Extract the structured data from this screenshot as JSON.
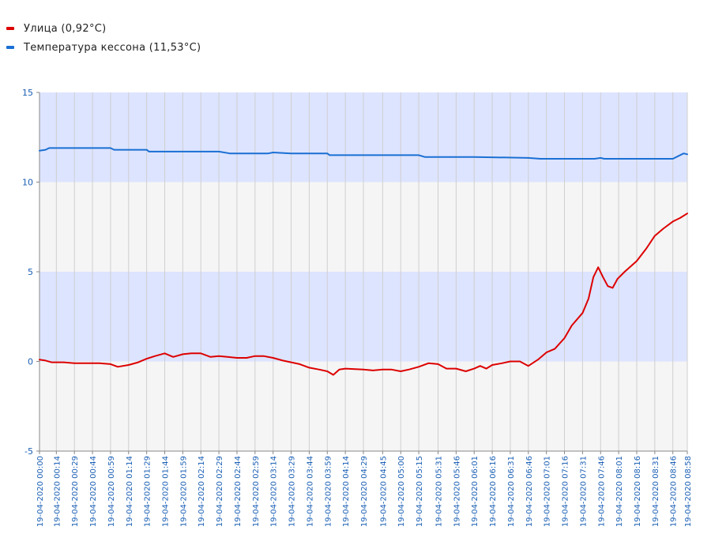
{
  "legend": [
    {
      "label": "Улица (0,92°C)",
      "color": "#dd0000"
    },
    {
      "label": "Температура кессона (11,53°C)",
      "color": "#1a6fd4"
    }
  ],
  "chart_data": {
    "type": "line",
    "title": "",
    "xlabel": "",
    "ylabel": "",
    "ylim": [
      -5,
      15
    ],
    "yticks": [
      -5,
      0,
      5,
      10,
      15
    ],
    "grid": true,
    "legend_position": "top-left",
    "band_colors": {
      "blue": "#dde4ff",
      "grey": "#f5f5f5"
    },
    "xticks": [
      "19-04-2020 00:00",
      "19-04-2020 00:14",
      "19-04-2020 00:29",
      "19-04-2020 00:44",
      "19-04-2020 00:59",
      "19-04-2020 01:14",
      "19-04-2020 01:29",
      "19-04-2020 01:44",
      "19-04-2020 01:59",
      "19-04-2020 02:14",
      "19-04-2020 02:29",
      "19-04-2020 02:44",
      "19-04-2020 02:59",
      "19-04-2020 03:14",
      "19-04-2020 03:29",
      "19-04-2020 03:44",
      "19-04-2020 03:59",
      "19-04-2020 04:14",
      "19-04-2020 04:29",
      "19-04-2020 04:45",
      "19-04-2020 05:00",
      "19-04-2020 05:15",
      "19-04-2020 05:31",
      "19-04-2020 05:46",
      "19-04-2020 06:01",
      "19-04-2020 06:16",
      "19-04-2020 06:31",
      "19-04-2020 06:46",
      "19-04-2020 07:01",
      "19-04-2020 07:16",
      "19-04-2020 07:31",
      "19-04-2020 07:46",
      "19-04-2020 08:01",
      "19-04-2020 08:16",
      "19-04-2020 08:31",
      "19-04-2020 08:46",
      "19-04-2020 08:58"
    ],
    "series": [
      {
        "name": "Улица (0,92°C)",
        "color": "#dd0000",
        "points": [
          [
            "19-04-2020 00:00",
            0.1
          ],
          [
            "19-04-2020 00:05",
            0.05
          ],
          [
            "19-04-2020 00:10",
            -0.05
          ],
          [
            "19-04-2020 00:20",
            -0.05
          ],
          [
            "19-04-2020 00:29",
            -0.1
          ],
          [
            "19-04-2020 00:40",
            -0.1
          ],
          [
            "19-04-2020 00:50",
            -0.1
          ],
          [
            "19-04-2020 00:59",
            -0.15
          ],
          [
            "19-04-2020 01:05",
            -0.3
          ],
          [
            "19-04-2020 01:14",
            -0.2
          ],
          [
            "19-04-2020 01:22",
            -0.05
          ],
          [
            "19-04-2020 01:29",
            0.15
          ],
          [
            "19-04-2020 01:36",
            0.3
          ],
          [
            "19-04-2020 01:44",
            0.45
          ],
          [
            "19-04-2020 01:51",
            0.25
          ],
          [
            "19-04-2020 01:59",
            0.4
          ],
          [
            "19-04-2020 02:06",
            0.45
          ],
          [
            "19-04-2020 02:14",
            0.45
          ],
          [
            "19-04-2020 02:22",
            0.25
          ],
          [
            "19-04-2020 02:29",
            0.3
          ],
          [
            "19-04-2020 02:36",
            0.25
          ],
          [
            "19-04-2020 02:44",
            0.2
          ],
          [
            "19-04-2020 02:52",
            0.2
          ],
          [
            "19-04-2020 02:59",
            0.3
          ],
          [
            "19-04-2020 03:06",
            0.3
          ],
          [
            "19-04-2020 03:14",
            0.2
          ],
          [
            "19-04-2020 03:22",
            0.05
          ],
          [
            "19-04-2020 03:29",
            -0.05
          ],
          [
            "19-04-2020 03:36",
            -0.15
          ],
          [
            "19-04-2020 03:44",
            -0.35
          ],
          [
            "19-04-2020 03:52",
            -0.45
          ],
          [
            "19-04-2020 03:59",
            -0.55
          ],
          [
            "19-04-2020 04:04",
            -0.75
          ],
          [
            "19-04-2020 04:09",
            -0.45
          ],
          [
            "19-04-2020 04:14",
            -0.4
          ],
          [
            "19-04-2020 04:29",
            -0.45
          ],
          [
            "19-04-2020 04:37",
            -0.5
          ],
          [
            "19-04-2020 04:45",
            -0.45
          ],
          [
            "19-04-2020 04:52",
            -0.45
          ],
          [
            "19-04-2020 05:00",
            -0.55
          ],
          [
            "19-04-2020 05:07",
            -0.45
          ],
          [
            "19-04-2020 05:15",
            -0.3
          ],
          [
            "19-04-2020 05:23",
            -0.1
          ],
          [
            "19-04-2020 05:31",
            -0.15
          ],
          [
            "19-04-2020 05:38",
            -0.4
          ],
          [
            "19-04-2020 05:46",
            -0.4
          ],
          [
            "19-04-2020 05:54",
            -0.55
          ],
          [
            "19-04-2020 06:01",
            -0.4
          ],
          [
            "19-04-2020 06:06",
            -0.25
          ],
          [
            "19-04-2020 06:11",
            -0.4
          ],
          [
            "19-04-2020 06:16",
            -0.2
          ],
          [
            "19-04-2020 06:24",
            -0.1
          ],
          [
            "19-04-2020 06:31",
            0.0
          ],
          [
            "19-04-2020 06:39",
            0.0
          ],
          [
            "19-04-2020 06:46",
            -0.25
          ],
          [
            "19-04-2020 06:54",
            0.1
          ],
          [
            "19-04-2020 07:01",
            0.5
          ],
          [
            "19-04-2020 07:08",
            0.7
          ],
          [
            "19-04-2020 07:16",
            1.3
          ],
          [
            "19-04-2020 07:22",
            2.0
          ],
          [
            "19-04-2020 07:31",
            2.7
          ],
          [
            "19-04-2020 07:36",
            3.5
          ],
          [
            "19-04-2020 07:40",
            4.7
          ],
          [
            "19-04-2020 07:44",
            5.25
          ],
          [
            "19-04-2020 07:48",
            4.7
          ],
          [
            "19-04-2020 07:52",
            4.2
          ],
          [
            "19-04-2020 07:56",
            4.1
          ],
          [
            "19-04-2020 08:00",
            4.6
          ],
          [
            "19-04-2020 08:06",
            5.0
          ],
          [
            "19-04-2020 08:16",
            5.6
          ],
          [
            "19-04-2020 08:24",
            6.3
          ],
          [
            "19-04-2020 08:31",
            7.0
          ],
          [
            "19-04-2020 08:38",
            7.4
          ],
          [
            "19-04-2020 08:46",
            7.8
          ],
          [
            "19-04-2020 08:52",
            8.0
          ],
          [
            "19-04-2020 08:58",
            8.25
          ]
        ]
      },
      {
        "name": "Температура кессона (11,53°C)",
        "color": "#1a6fd4",
        "points": [
          [
            "19-04-2020 00:00",
            11.75
          ],
          [
            "19-04-2020 00:05",
            11.8
          ],
          [
            "19-04-2020 00:08",
            11.9
          ],
          [
            "19-04-2020 00:59",
            11.9
          ],
          [
            "19-04-2020 01:02",
            11.8
          ],
          [
            "19-04-2020 01:29",
            11.8
          ],
          [
            "19-04-2020 01:31",
            11.7
          ],
          [
            "19-04-2020 02:29",
            11.7
          ],
          [
            "19-04-2020 02:38",
            11.6
          ],
          [
            "19-04-2020 03:10",
            11.6
          ],
          [
            "19-04-2020 03:14",
            11.65
          ],
          [
            "19-04-2020 03:29",
            11.6
          ],
          [
            "19-04-2020 03:59",
            11.6
          ],
          [
            "19-04-2020 04:01",
            11.5
          ],
          [
            "19-04-2020 05:15",
            11.5
          ],
          [
            "19-04-2020 05:20",
            11.4
          ],
          [
            "19-04-2020 06:01",
            11.4
          ],
          [
            "19-04-2020 06:46",
            11.35
          ],
          [
            "19-04-2020 06:56",
            11.3
          ],
          [
            "19-04-2020 07:41",
            11.3
          ],
          [
            "19-04-2020 07:46",
            11.35
          ],
          [
            "19-04-2020 07:49",
            11.3
          ],
          [
            "19-04-2020 08:46",
            11.3
          ],
          [
            "19-04-2020 08:55",
            11.6
          ],
          [
            "19-04-2020 08:58",
            11.55
          ]
        ]
      }
    ]
  }
}
